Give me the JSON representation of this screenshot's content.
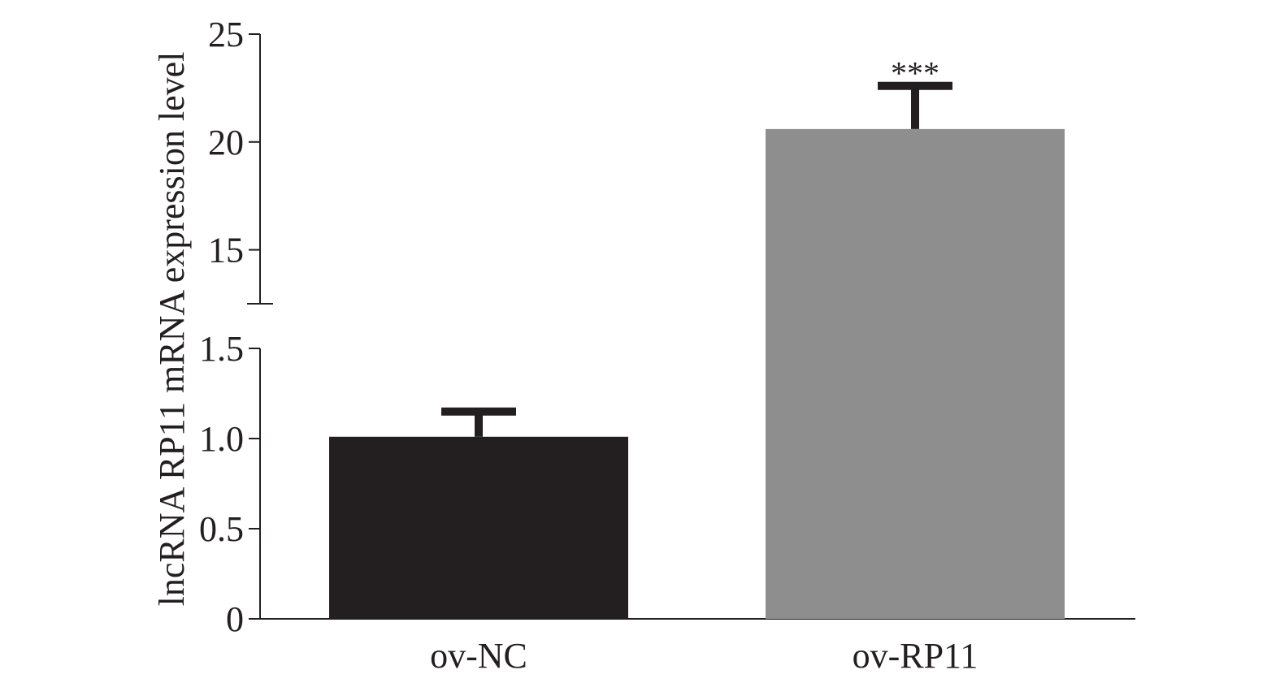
{
  "chart_data": {
    "type": "bar",
    "categories": [
      "ov-NC",
      "ov-RP11"
    ],
    "values": [
      1.01,
      20.6
    ],
    "errors": [
      0.14,
      2.0
    ],
    "colors": [
      "#231f20",
      "#8f8e8f"
    ],
    "ylabel": "lncRNA RP11 mRNA expression level",
    "xlabel": "",
    "y_axis_break": true,
    "lower_segment": {
      "ylim": [
        0,
        1.5
      ],
      "ticks": [
        "0",
        "0.5",
        "1.0",
        "1.5"
      ],
      "tick_values": [
        0,
        0.5,
        1.0,
        1.5
      ]
    },
    "upper_segment": {
      "ylim": [
        12.5,
        25
      ],
      "ticks": [
        "15",
        "20",
        "25"
      ],
      "tick_values": [
        15,
        20,
        25
      ]
    },
    "annotations": [
      {
        "category": "ov-RP11",
        "text": "***"
      }
    ],
    "grid": false,
    "legend": "none"
  }
}
